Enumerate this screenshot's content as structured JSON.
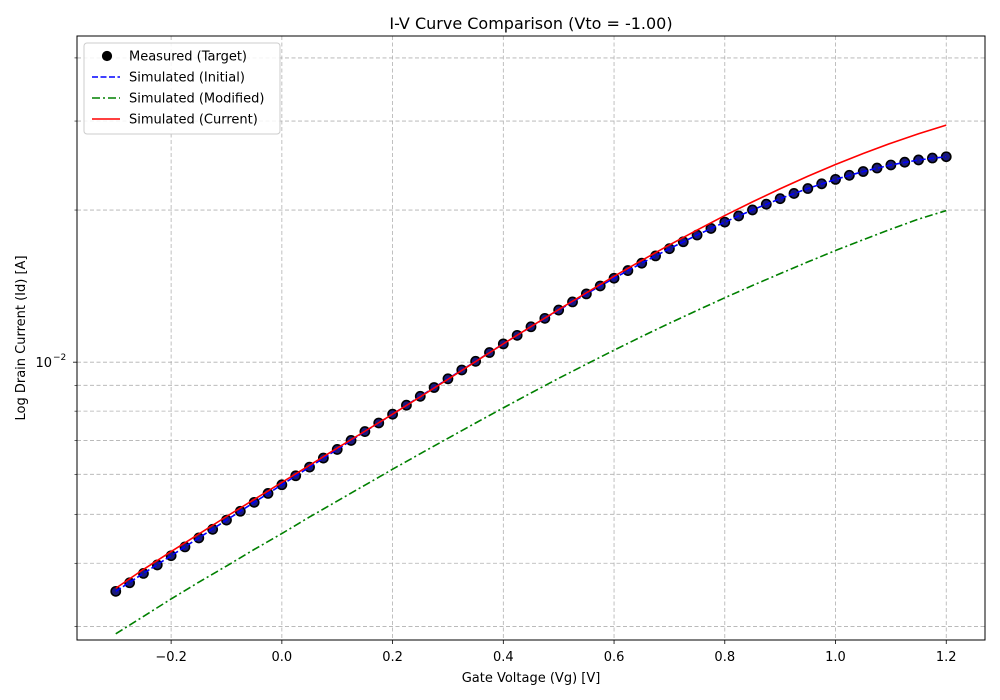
{
  "chart_data": {
    "type": "line",
    "title": "I-V Curve Comparison (Vto = -1.00)",
    "xlabel": "Gate Voltage (Vg) [V]",
    "ylabel": "Log Drain Current (Id) [A]",
    "xscale": "linear",
    "yscale": "log",
    "xlim": [
      -0.37,
      1.27
    ],
    "ylim": [
      0.00282,
      0.0442
    ],
    "xticks": [
      -0.2,
      0.0,
      0.2,
      0.4,
      0.6,
      0.8,
      1.0,
      1.2
    ],
    "xtick_labels": [
      "−0.2",
      "0.0",
      "0.2",
      "0.4",
      "0.6",
      "0.8",
      "1.0",
      "1.2"
    ],
    "ytick_major": [
      0.01
    ],
    "ytick_major_labels": [
      "10"
    ],
    "ytick_major_exponent": "−2",
    "ytick_minor": [
      0.003,
      0.004,
      0.005,
      0.006,
      0.007,
      0.008,
      0.009,
      0.02,
      0.03,
      0.04
    ],
    "grid": true,
    "legend_position": "top-left",
    "series": [
      {
        "name": "Measured (Target)",
        "style": "markers",
        "color": "#000000",
        "fill": "#1a1a7a",
        "x": [
          -0.3,
          -0.275,
          -0.25,
          -0.225,
          -0.2,
          -0.175,
          -0.15,
          -0.125,
          -0.1,
          -0.075,
          -0.05,
          -0.025,
          0.0,
          0.025,
          0.05,
          0.075,
          0.1,
          0.125,
          0.15,
          0.175,
          0.2,
          0.225,
          0.25,
          0.275,
          0.3,
          0.325,
          0.35,
          0.375,
          0.4,
          0.425,
          0.45,
          0.475,
          0.5,
          0.525,
          0.55,
          0.575,
          0.6,
          0.625,
          0.65,
          0.675,
          0.7,
          0.725,
          0.75,
          0.775,
          0.8,
          0.825,
          0.85,
          0.875,
          0.9,
          0.925,
          0.95,
          0.975,
          1.0,
          1.025,
          1.05,
          1.075,
          1.1,
          1.125,
          1.15,
          1.175,
          1.2
        ],
        "y": [
          0.00352,
          0.00366,
          0.00382,
          0.00397,
          0.00414,
          0.00431,
          0.00449,
          0.00467,
          0.00487,
          0.00507,
          0.00528,
          0.0055,
          0.00572,
          0.00596,
          0.0062,
          0.00646,
          0.00672,
          0.007,
          0.00729,
          0.00758,
          0.00789,
          0.00822,
          0.00856,
          0.00891,
          0.00927,
          0.00965,
          0.01004,
          0.01045,
          0.01087,
          0.0113,
          0.01175,
          0.01221,
          0.01268,
          0.01316,
          0.01365,
          0.01415,
          0.01466,
          0.01518,
          0.0157,
          0.01623,
          0.01677,
          0.01731,
          0.01785,
          0.01839,
          0.01893,
          0.01947,
          0.02001,
          0.02054,
          0.02106,
          0.02157,
          0.02206,
          0.02254,
          0.023,
          0.02343,
          0.02384,
          0.02422,
          0.02456,
          0.02487,
          0.02513,
          0.02535,
          0.0255
        ]
      },
      {
        "name": "Simulated (Initial)",
        "style": "dashed",
        "color": "#0000ff",
        "x": [
          -0.3,
          -0.25,
          -0.2,
          -0.15,
          -0.1,
          -0.05,
          0.0,
          0.05,
          0.1,
          0.15,
          0.2,
          0.25,
          0.3,
          0.35,
          0.4,
          0.45,
          0.5,
          0.55,
          0.6,
          0.65,
          0.7,
          0.75,
          0.8,
          0.85,
          0.9,
          0.95,
          1.0,
          1.05,
          1.1,
          1.15,
          1.2
        ],
        "y": [
          0.00352,
          0.00382,
          0.00414,
          0.00449,
          0.00487,
          0.00528,
          0.00572,
          0.0062,
          0.00672,
          0.00729,
          0.00789,
          0.00856,
          0.00927,
          0.01004,
          0.01087,
          0.01175,
          0.01268,
          0.01365,
          0.01466,
          0.0157,
          0.01677,
          0.01785,
          0.01893,
          0.02001,
          0.02106,
          0.02206,
          0.023,
          0.02384,
          0.02456,
          0.02513,
          0.0255
        ]
      },
      {
        "name": "Simulated (Modified)",
        "style": "dashdot",
        "color": "#008000",
        "x": [
          -0.3,
          -0.25,
          -0.2,
          -0.15,
          -0.1,
          -0.05,
          0.0,
          0.05,
          0.1,
          0.15,
          0.2,
          0.25,
          0.3,
          0.35,
          0.4,
          0.45,
          0.5,
          0.55,
          0.6,
          0.65,
          0.7,
          0.75,
          0.8,
          0.85,
          0.9,
          0.95,
          1.0,
          1.05,
          1.1,
          1.15,
          1.2
        ],
        "y": [
          0.0029,
          0.00314,
          0.0034,
          0.00367,
          0.00395,
          0.00426,
          0.00458,
          0.00494,
          0.00531,
          0.00571,
          0.00614,
          0.00659,
          0.00707,
          0.00758,
          0.00812,
          0.00869,
          0.00929,
          0.00991,
          0.01056,
          0.01124,
          0.01194,
          0.01266,
          0.01341,
          0.01418,
          0.01497,
          0.01579,
          0.01663,
          0.01747,
          0.01833,
          0.01919,
          0.01995
        ]
      },
      {
        "name": "Simulated (Current)",
        "style": "solid",
        "color": "#ff0000",
        "x": [
          -0.3,
          -0.25,
          -0.2,
          -0.15,
          -0.1,
          -0.05,
          0.0,
          0.05,
          0.1,
          0.15,
          0.2,
          0.25,
          0.3,
          0.35,
          0.4,
          0.45,
          0.5,
          0.55,
          0.6,
          0.65,
          0.7,
          0.75,
          0.8,
          0.85,
          0.9,
          0.95,
          1.0,
          1.05,
          1.1,
          1.15,
          1.2
        ],
        "y": [
          0.00357,
          0.00389,
          0.00422,
          0.00457,
          0.00495,
          0.00535,
          0.00578,
          0.00625,
          0.00676,
          0.0073,
          0.00789,
          0.00854,
          0.00925,
          0.01003,
          0.01087,
          0.01176,
          0.01271,
          0.01372,
          0.01479,
          0.0159,
          0.01706,
          0.01826,
          0.0195,
          0.02076,
          0.02204,
          0.02333,
          0.02461,
          0.02588,
          0.02712,
          0.02831,
          0.02945
        ]
      }
    ]
  }
}
